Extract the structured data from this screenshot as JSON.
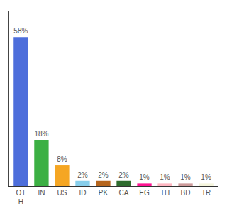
{
  "chart_data": {
    "type": "bar",
    "categories": [
      "OT\nH",
      "IN",
      "US",
      "ID",
      "PK",
      "CA",
      "EG",
      "TH",
      "BD",
      "TR"
    ],
    "values": [
      58,
      18,
      8,
      2,
      2,
      2,
      1,
      1,
      1,
      1
    ],
    "value_labels": [
      "58%",
      "18%",
      "8%",
      "2%",
      "2%",
      "2%",
      "1%",
      "1%",
      "1%",
      "1%"
    ],
    "colors": [
      "#4d6edb",
      "#3cb043",
      "#f5a623",
      "#87ceeb",
      "#b5651d",
      "#2e6b2e",
      "#ff1493",
      "#ffb6c1",
      "#cd9b9b",
      "#f5f5dc"
    ],
    "ylim": [
      0,
      68
    ],
    "data_labels": true,
    "tick_labels": "x",
    "grid": false
  }
}
